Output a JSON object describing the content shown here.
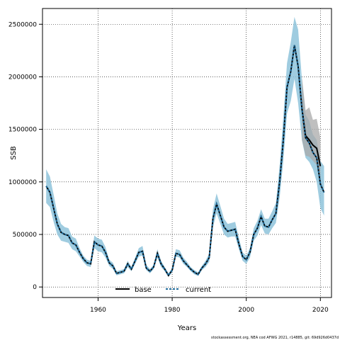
{
  "chart_data": {
    "type": "line",
    "xlabel": "Years",
    "ylabel": "SSB",
    "xlim": [
      1945,
      2023
    ],
    "ylim": [
      -100000,
      2650000
    ],
    "x_ticks": [
      1960,
      1980,
      2000,
      2020
    ],
    "y_ticks": [
      0,
      500000,
      1000000,
      1500000,
      2000000,
      2500000
    ],
    "y_tick_labels": [
      "0",
      "500000",
      "1000000",
      "1500000",
      "2000000",
      "2500000"
    ],
    "grid": true,
    "legend": {
      "placement": "bottom-center",
      "entries": [
        "base",
        "current"
      ]
    },
    "footer": "stockassessment.org, NEA cod AFWG 2021, r14885, git: 69d926d0437d",
    "colors": {
      "base_band": "#aaaaaa",
      "current_band": "#8ec3da",
      "current_line": "#1e6a9a",
      "base_line": "#000000"
    },
    "series": [
      {
        "name": "current",
        "x": [
          1946,
          1947,
          1948,
          1949,
          1950,
          1951,
          1952,
          1953,
          1954,
          1955,
          1956,
          1957,
          1958,
          1959,
          1960,
          1961,
          1962,
          1963,
          1964,
          1965,
          1966,
          1967,
          1968,
          1969,
          1970,
          1971,
          1972,
          1973,
          1974,
          1975,
          1976,
          1977,
          1978,
          1979,
          1980,
          1981,
          1982,
          1983,
          1984,
          1985,
          1986,
          1987,
          1988,
          1989,
          1990,
          1991,
          1992,
          1993,
          1994,
          1995,
          1996,
          1997,
          1998,
          1999,
          2000,
          2001,
          2002,
          2003,
          2004,
          2005,
          2006,
          2007,
          2008,
          2009,
          2010,
          2011,
          2012,
          2013,
          2014,
          2015,
          2016,
          2017,
          2018,
          2019,
          2020,
          2021
        ],
        "values": [
          960000,
          900000,
          750000,
          600000,
          520000,
          500000,
          490000,
          420000,
          400000,
          330000,
          270000,
          230000,
          220000,
          430000,
          400000,
          390000,
          330000,
          230000,
          200000,
          130000,
          140000,
          150000,
          220000,
          170000,
          250000,
          330000,
          340000,
          180000,
          150000,
          190000,
          320000,
          220000,
          170000,
          110000,
          160000,
          320000,
          310000,
          250000,
          210000,
          170000,
          140000,
          120000,
          180000,
          220000,
          280000,
          650000,
          790000,
          680000,
          570000,
          530000,
          540000,
          550000,
          410000,
          290000,
          260000,
          330000,
          500000,
          560000,
          670000,
          580000,
          570000,
          640000,
          700000,
          1000000,
          1400000,
          1900000,
          2050000,
          2300000,
          2100000,
          1700000,
          1420000,
          1370000,
          1280000,
          1230000,
          980000,
          900000
        ],
        "lower": [
          800000,
          760000,
          620000,
          500000,
          440000,
          430000,
          420000,
          360000,
          340000,
          290000,
          240000,
          200000,
          190000,
          370000,
          340000,
          330000,
          280000,
          200000,
          170000,
          110000,
          120000,
          130000,
          190000,
          150000,
          220000,
          290000,
          300000,
          160000,
          130000,
          170000,
          280000,
          190000,
          150000,
          95000,
          140000,
          290000,
          280000,
          220000,
          190000,
          150000,
          120000,
          105000,
          160000,
          190000,
          240000,
          570000,
          700000,
          600000,
          500000,
          470000,
          480000,
          480000,
          360000,
          250000,
          220000,
          280000,
          440000,
          490000,
          590000,
          510000,
          500000,
          560000,
          610000,
          850000,
          1200000,
          1650000,
          1770000,
          1980000,
          1750000,
          1400000,
          1230000,
          1190000,
          1120000,
          1000000,
          750000,
          680000
        ],
        "upper": [
          1120000,
          1050000,
          880000,
          700000,
          600000,
          570000,
          560000,
          480000,
          460000,
          370000,
          300000,
          260000,
          250000,
          490000,
          460000,
          450000,
          380000,
          260000,
          230000,
          150000,
          160000,
          170000,
          250000,
          190000,
          280000,
          370000,
          390000,
          210000,
          170000,
          210000,
          360000,
          250000,
          190000,
          130000,
          180000,
          360000,
          350000,
          280000,
          240000,
          190000,
          160000,
          140000,
          200000,
          250000,
          320000,
          740000,
          890000,
          770000,
          650000,
          600000,
          610000,
          620000,
          470000,
          330000,
          300000,
          370000,
          560000,
          630000,
          740000,
          650000,
          650000,
          720000,
          800000,
          1160000,
          1620000,
          2130000,
          2330000,
          2570000,
          2450000,
          1980000,
          1640000,
          1580000,
          1450000,
          1400000,
          1200000,
          1150000
        ]
      },
      {
        "name": "base",
        "x": [
          2015,
          2016,
          2017,
          2018,
          2019,
          2020
        ],
        "values": [
          1700000,
          1440000,
          1400000,
          1350000,
          1320000,
          1150000
        ],
        "lower": [
          1400000,
          1250000,
          1240000,
          1200000,
          1160000,
          980000
        ],
        "upper": [
          2000000,
          1680000,
          1710000,
          1590000,
          1600000,
          1420000
        ]
      }
    ]
  }
}
